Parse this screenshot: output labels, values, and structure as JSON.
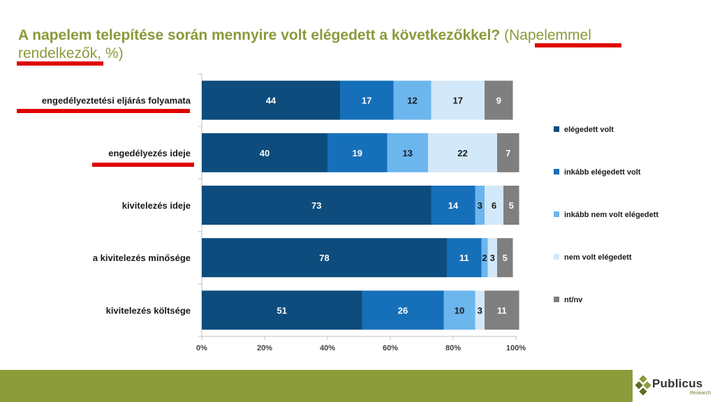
{
  "title": {
    "main": "A napelem telepítése során mennyire volt elégedett a következőkkel?",
    "sub": "(Napelemmel rendelkezők, %)"
  },
  "chart_data": {
    "type": "bar",
    "orientation": "horizontal",
    "stacked": true,
    "categories": [
      "engedélyeztetési eljárás folyamata",
      "engedélyezés ideje",
      "kivitelezés ideje",
      "a kivitelezés minősége",
      "kivitelezés költsége"
    ],
    "series": [
      {
        "name": "elégedett volt",
        "color": "#0d4c7c",
        "values": [
          44,
          40,
          73,
          78,
          51
        ]
      },
      {
        "name": "inkább elégedett volt",
        "color": "#1670b9",
        "values": [
          17,
          19,
          14,
          11,
          26
        ]
      },
      {
        "name": "inkább nem volt elégedett",
        "color": "#6cb6ee",
        "values": [
          12,
          13,
          3,
          2,
          10
        ]
      },
      {
        "name": "nem volt elégedett",
        "color": "#d3e8f8",
        "values": [
          17,
          22,
          6,
          3,
          3
        ]
      },
      {
        "name": "nt/nv",
        "color": "#7f7f7f",
        "values": [
          9,
          7,
          5,
          5,
          11
        ]
      }
    ],
    "data_labels": [
      [
        "44",
        "17",
        "12",
        "17",
        "9"
      ],
      [
        "40",
        "19",
        "13",
        "22",
        "7"
      ],
      [
        "73",
        "14",
        "3",
        "6",
        "5"
      ],
      [
        "78",
        "11",
        "2",
        "3",
        "5"
      ],
      [
        "51",
        "26",
        "10",
        "3",
        "11"
      ]
    ],
    "x_ticks": [
      "0%",
      "20%",
      "40%",
      "60%",
      "80%",
      "100%"
    ],
    "xlim": [
      0,
      100
    ],
    "legend_position": "right",
    "xlabel": "",
    "ylabel": ""
  },
  "logo": {
    "name": "Publicus",
    "sub": "Research"
  },
  "colors": {
    "title": "#8a9a3a",
    "footer": "#8d9c3b",
    "underline": "#e00000"
  }
}
